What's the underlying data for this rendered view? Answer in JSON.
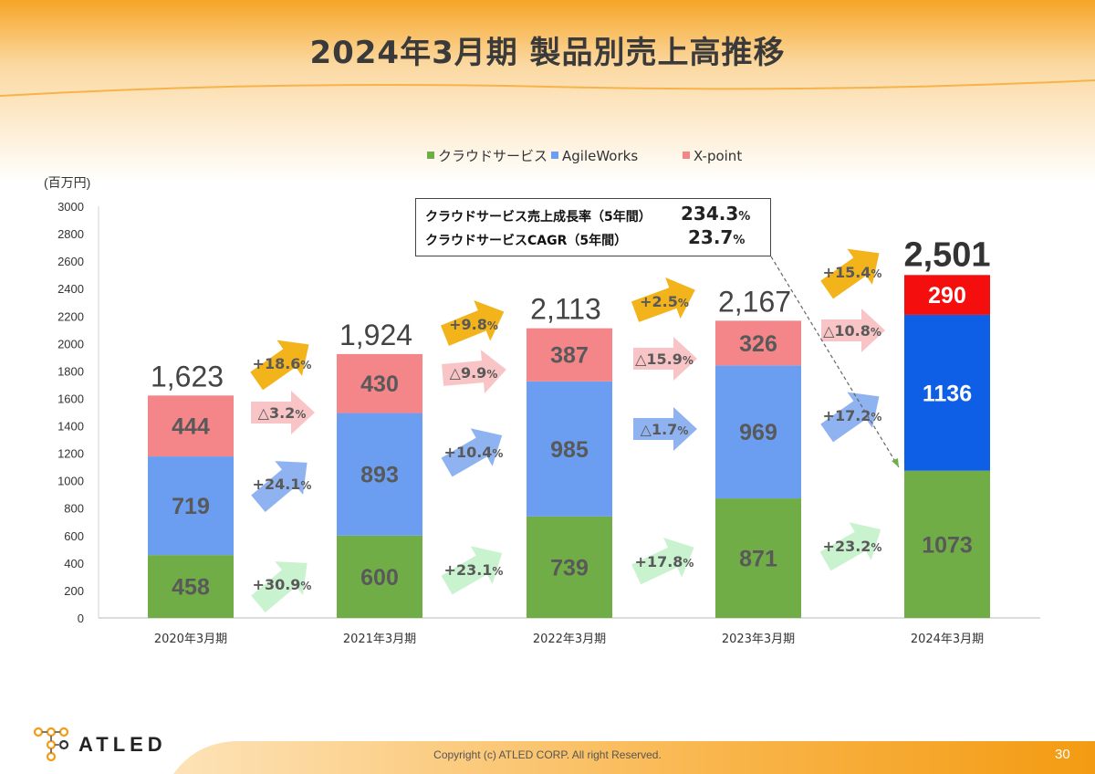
{
  "page": {
    "title": "2024年3月期 製品別売上高推移",
    "copyright": "Copyright (c)  ATLED CORP. All right Reserved.",
    "page_number": "30",
    "logo_text": "ATLED"
  },
  "colors": {
    "cloud": "#70ad47",
    "agile": "#6b9ef0",
    "xpoint": "#f4868a",
    "agile_2024": "#0f5fe6",
    "xpoint_2024": "#f40e0e",
    "accent_orange": "#f7a51e",
    "arrow_gold": "#f2b31b"
  },
  "cagr_box": {
    "row1_label": "クラウドサービス売上成長率（5年間）",
    "row1_value": "234.3",
    "row1_unit": "%",
    "row2_label": "クラウドサービスCAGR（5年間）",
    "row2_value": "23.7",
    "row2_unit": "%"
  },
  "chart_data": {
    "type": "bar",
    "stacked": true,
    "unit_label": "(百万円)",
    "categories": [
      "2020年3月期",
      "2021年3月期",
      "2022年3月期",
      "2023年3月期",
      "2024年3月期"
    ],
    "series": [
      {
        "name": "クラウドサービス",
        "values": [
          458,
          600,
          739,
          871,
          1073
        ]
      },
      {
        "name": "AgileWorks",
        "values": [
          719,
          893,
          985,
          969,
          1136
        ]
      },
      {
        "name": "X-point",
        "values": [
          444,
          430,
          387,
          326,
          290
        ]
      }
    ],
    "totals": [
      "1,623",
      "1,924",
      "2,113",
      "2,167",
      "2,501"
    ],
    "ylim": [
      0,
      3000
    ],
    "yticks": [
      0,
      200,
      400,
      600,
      800,
      1000,
      1200,
      1400,
      1600,
      1800,
      2000,
      2200,
      2400,
      2600,
      2800,
      3000
    ],
    "legend_position": "top",
    "grid": false,
    "growth_labels": {
      "total": [
        "+18.6",
        "+9.8",
        "+2.5",
        "+15.4"
      ],
      "xpoint": [
        "△3.2",
        "△9.9",
        "△15.9",
        "△10.8"
      ],
      "agile": [
        "+24.1",
        "+10.4",
        "△1.7",
        "+17.2"
      ],
      "cloud": [
        "+30.9",
        "+23.1",
        "+17.8",
        "+23.2"
      ],
      "unit": "%"
    }
  }
}
